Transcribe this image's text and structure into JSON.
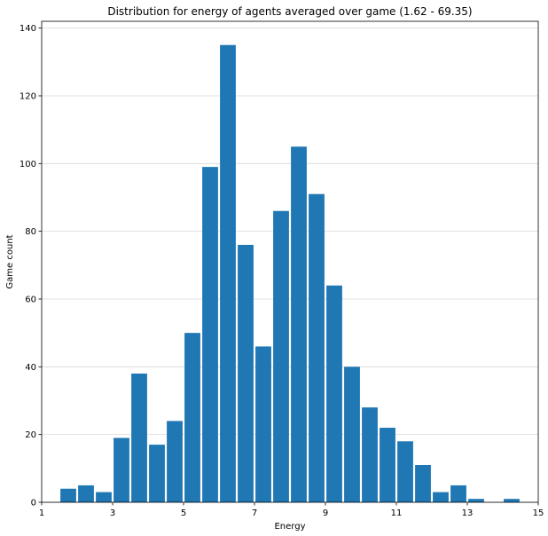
{
  "chart_data": {
    "type": "bar",
    "title": "Distribution for energy of agents averaged over game (1.62 - 69.35)",
    "xlabel": "Energy",
    "ylabel": "Game count",
    "xlim": [
      1,
      15
    ],
    "ylim": [
      0,
      142
    ],
    "x_ticks": [
      1,
      3,
      5,
      7,
      9,
      11,
      13,
      15
    ],
    "y_ticks": [
      0,
      20,
      40,
      60,
      80,
      100,
      120,
      140
    ],
    "grid": "horizontal",
    "bar_color": "#1f77b4",
    "bins": [
      {
        "start": 1.5,
        "end": 2.0,
        "count": 4
      },
      {
        "start": 2.0,
        "end": 2.5,
        "count": 5
      },
      {
        "start": 2.5,
        "end": 3.0,
        "count": 3
      },
      {
        "start": 3.0,
        "end": 3.5,
        "count": 19
      },
      {
        "start": 3.5,
        "end": 4.0,
        "count": 38
      },
      {
        "start": 4.0,
        "end": 4.5,
        "count": 17
      },
      {
        "start": 4.5,
        "end": 5.0,
        "count": 24
      },
      {
        "start": 5.0,
        "end": 5.5,
        "count": 50
      },
      {
        "start": 5.5,
        "end": 6.0,
        "count": 99
      },
      {
        "start": 6.0,
        "end": 6.5,
        "count": 135
      },
      {
        "start": 6.5,
        "end": 7.0,
        "count": 76
      },
      {
        "start": 7.0,
        "end": 7.5,
        "count": 46
      },
      {
        "start": 7.5,
        "end": 8.0,
        "count": 86
      },
      {
        "start": 8.0,
        "end": 8.5,
        "count": 105
      },
      {
        "start": 8.5,
        "end": 9.0,
        "count": 91
      },
      {
        "start": 9.0,
        "end": 9.5,
        "count": 64
      },
      {
        "start": 9.5,
        "end": 10.0,
        "count": 40
      },
      {
        "start": 10.0,
        "end": 10.5,
        "count": 28
      },
      {
        "start": 10.5,
        "end": 11.0,
        "count": 22
      },
      {
        "start": 11.0,
        "end": 11.5,
        "count": 18
      },
      {
        "start": 11.5,
        "end": 12.0,
        "count": 11
      },
      {
        "start": 12.0,
        "end": 12.5,
        "count": 3
      },
      {
        "start": 12.5,
        "end": 13.0,
        "count": 5
      },
      {
        "start": 13.0,
        "end": 13.5,
        "count": 1
      },
      {
        "start": 14.0,
        "end": 14.5,
        "count": 1
      }
    ]
  }
}
